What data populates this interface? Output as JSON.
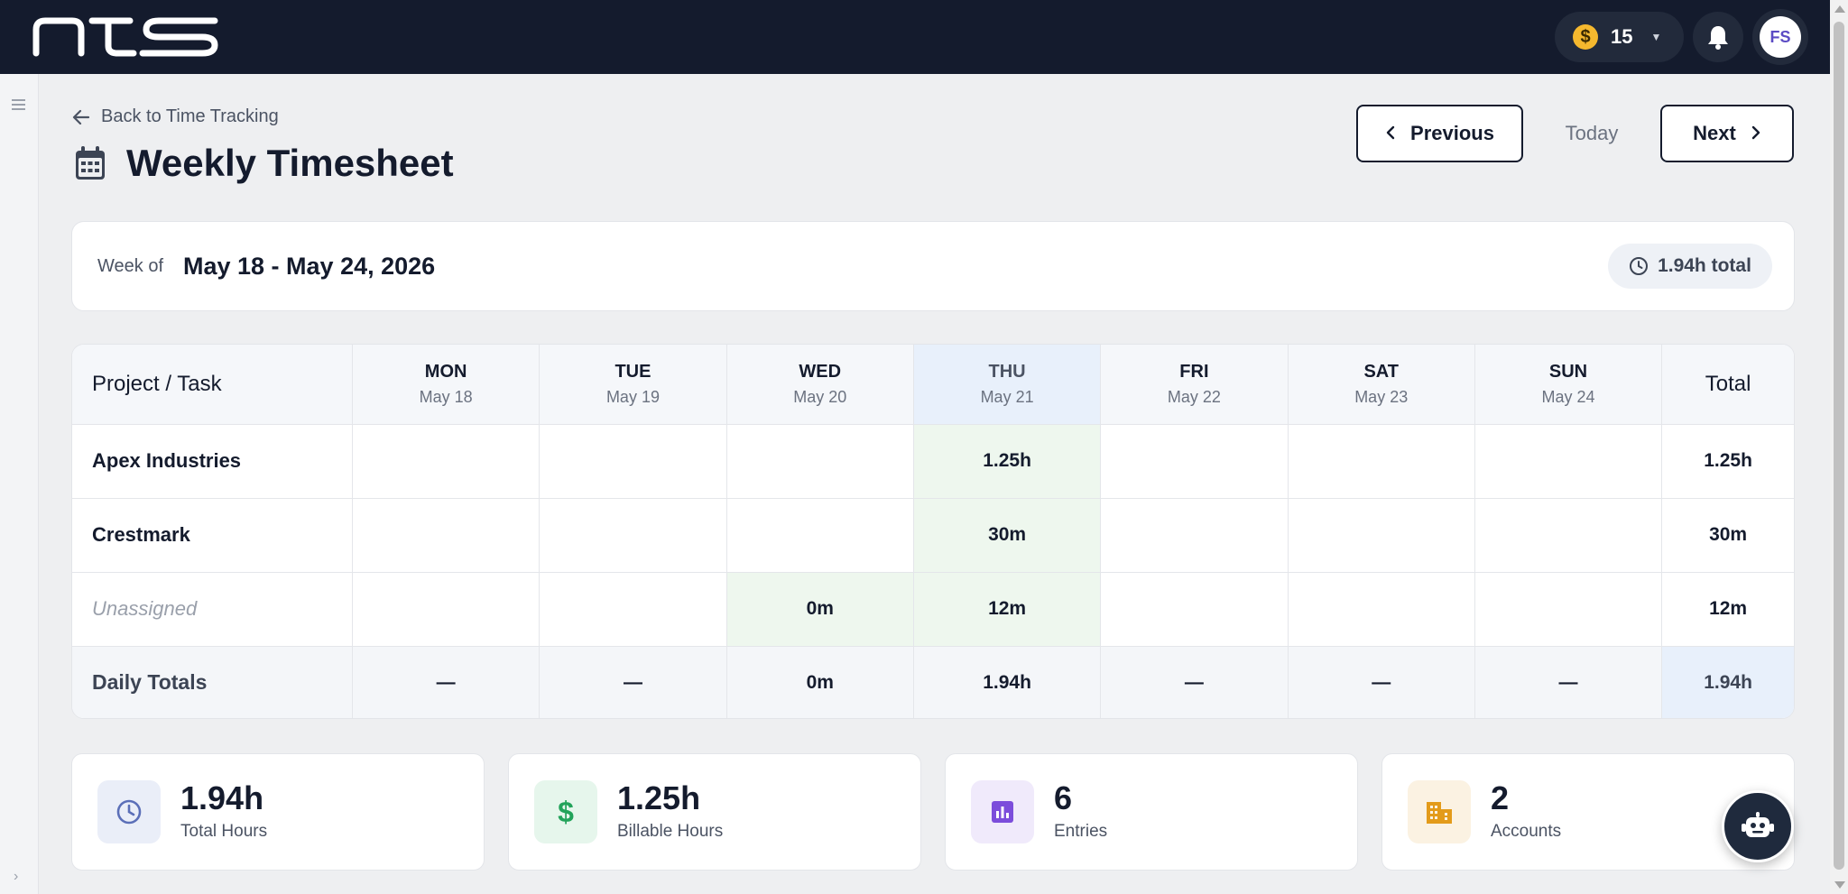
{
  "brand": {
    "logo_text": "NTS"
  },
  "header": {
    "coins": "15",
    "coin_symbol": "$",
    "user_initials": "FS",
    "icons": [
      "coin-icon",
      "chevron-down-icon",
      "bell-icon",
      "avatar"
    ]
  },
  "page": {
    "back_label": "Back to Time Tracking",
    "title": "Weekly Timesheet",
    "prev_label": "Previous",
    "today_label": "Today",
    "next_label": "Next"
  },
  "week": {
    "label": "Week of",
    "range": "May 18 - May 24, 2026",
    "total": "1.94h total"
  },
  "table": {
    "project_header": "Project / Task",
    "total_header": "Total",
    "days": [
      {
        "name": "MON",
        "date": "May 18"
      },
      {
        "name": "TUE",
        "date": "May 19"
      },
      {
        "name": "WED",
        "date": "May 20"
      },
      {
        "name": "THU",
        "date": "May 21",
        "today": true
      },
      {
        "name": "FRI",
        "date": "May 22"
      },
      {
        "name": "SAT",
        "date": "May 23"
      },
      {
        "name": "SUN",
        "date": "May 24"
      }
    ],
    "rows": [
      {
        "project": "Apex Industries",
        "cells": [
          "",
          "",
          "",
          "1.25h",
          "",
          "",
          ""
        ],
        "total": "1.25h"
      },
      {
        "project": "Crestmark",
        "cells": [
          "",
          "",
          "",
          "30m",
          "",
          "",
          ""
        ],
        "total": "30m"
      },
      {
        "project": "Unassigned",
        "cells": [
          "",
          "",
          "0m",
          "12m",
          "",
          "",
          ""
        ],
        "total": "12m"
      }
    ],
    "totals_label": "Daily Totals",
    "daily_totals": [
      "—",
      "—",
      "0m",
      "1.94h",
      "—",
      "—",
      "—"
    ],
    "grand_total": "1.94h"
  },
  "stats": [
    {
      "value": "1.94h",
      "label": "Total Hours",
      "icon": "clock-icon",
      "color": "#5b6fb8",
      "bg": "#eaeef8"
    },
    {
      "value": "1.25h",
      "label": "Billable Hours",
      "icon": "dollar-icon",
      "color": "#22a35a",
      "bg": "#e6f6ec"
    },
    {
      "value": "6",
      "label": "Entries",
      "icon": "bar-chart-icon",
      "color": "#7c4ddb",
      "bg": "#f0eafb"
    },
    {
      "value": "2",
      "label": "Accounts",
      "icon": "building-icon",
      "color": "#e39b1a",
      "bg": "#fbf2e2"
    }
  ],
  "colors": {
    "topbar": "#141b2d",
    "accent_today": "#e8f0fb",
    "filled_cell": "#eef7ee"
  }
}
